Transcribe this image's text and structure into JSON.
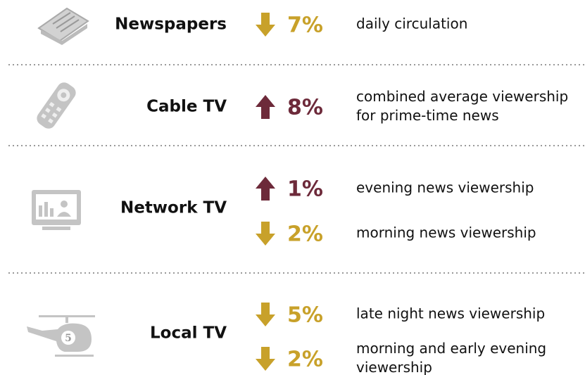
{
  "rows": [
    {
      "label": "Newspapers",
      "changes": [
        {
          "direction": "down",
          "text": "7%",
          "description": [
            "daily circulation"
          ]
        }
      ]
    },
    {
      "label": "Cable TV",
      "changes": [
        {
          "direction": "up",
          "text": "8%",
          "description": [
            "combined average viewership",
            "for prime-time news"
          ]
        }
      ]
    },
    {
      "label": "Network TV",
      "changes": [
        {
          "direction": "up",
          "text": "1%",
          "description": [
            "evening news viewership"
          ]
        },
        {
          "direction": "down",
          "text": "2%",
          "description": [
            "morning news viewership"
          ]
        }
      ]
    },
    {
      "label": "Local TV",
      "changes": [
        {
          "direction": "down",
          "text": "5%",
          "description": [
            "late night news viewership"
          ]
        },
        {
          "direction": "down",
          "text": "2%",
          "description": [
            "morning and early evening",
            "viewership"
          ]
        }
      ]
    }
  ],
  "colors": {
    "up": "#6d2a3a",
    "down": "#c8a12a"
  }
}
